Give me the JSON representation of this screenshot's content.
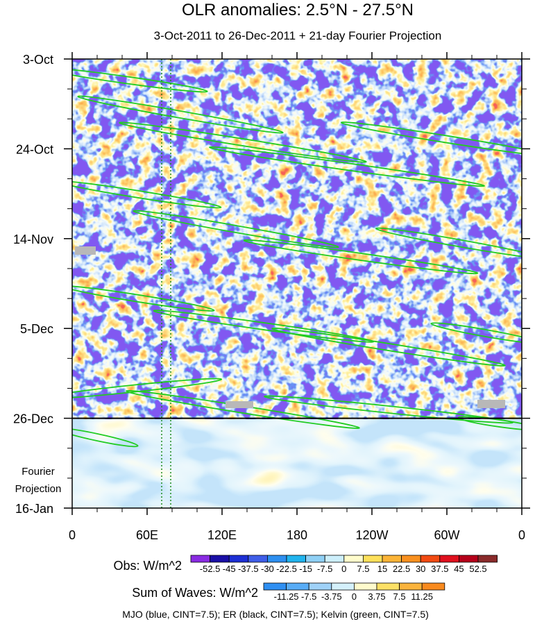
{
  "chart_data": {
    "type": "heatmap",
    "title": "OLR anomalies: 2.5°N - 27.5°N",
    "subtitle": "3-Oct-2011 to 26-Dec-2011 + 21-day Fourier Projection",
    "x_tick_labels": [
      "0",
      "60E",
      "120E",
      "180",
      "120W",
      "60W",
      "0"
    ],
    "x_range_deg_east": [
      0,
      360
    ],
    "y_tick_labels": [
      "3-Oct",
      "24-Oct",
      "14-Nov",
      "5-Dec",
      "26-Dec",
      "16-Jan"
    ],
    "y_range_days_from_start": [
      0,
      105
    ],
    "observation_end_day": 84,
    "projection_label_line1": "Fourier",
    "projection_label_line2": "Projection",
    "obs_colorbar": {
      "label": "Obs: W/m^2",
      "levels": [
        "-52.5",
        "-45",
        "-37.5",
        "-30",
        "-22.5",
        "-15",
        "-7.5",
        "0",
        "7.5",
        "15",
        "22.5",
        "30",
        "37.5",
        "45",
        "52.5"
      ],
      "colors": [
        "#8a2be2",
        "#1a0fa6",
        "#1d2fd4",
        "#3f5ee8",
        "#2d8ff0",
        "#21b4ee",
        "#8fd0f5",
        "#cdeffb",
        "#fffccc",
        "#fde05a",
        "#fbb437",
        "#f9901f",
        "#f24a12",
        "#e0101e",
        "#b5001a",
        "#8a2a2a"
      ]
    },
    "waves_colorbar": {
      "label": "Sum of Waves: W/m^2",
      "levels": [
        "-11.25",
        "-7.5",
        "-3.75",
        "0",
        "3.75",
        "7.5",
        "11.25"
      ],
      "colors": [
        "#2f8ff2",
        "#58acf6",
        "#9fd1f8",
        "#d4f0fc",
        "#fffbcc",
        "#fde066",
        "#fbb33c",
        "#f98a1e"
      ]
    },
    "footer": "MJO (blue, CINT=7.5); ER (black, CINT=7.5); Kelvin (green, CINT=7.5)",
    "contour_series": [
      {
        "name": "MJO",
        "color": "#2a2ad0"
      },
      {
        "name": "ER",
        "color": "#000000"
      },
      {
        "name": "Kelvin",
        "color": "#22cc22"
      }
    ]
  }
}
